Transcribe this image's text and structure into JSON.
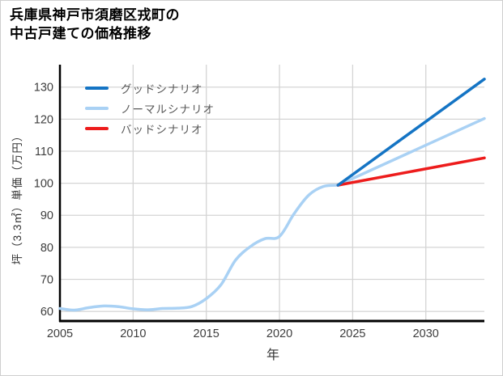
{
  "window": {
    "background": "#ffffff",
    "border_color": "#cfcfcf"
  },
  "header": {
    "title_line1": "兵庫県神戸市須磨区戎町の",
    "title_line2": "中古戸建ての価格推移"
  },
  "chart_data": {
    "type": "line",
    "title": "兵庫県神戸市須磨区戎町の中古戸建ての価格推移",
    "xlabel": "年",
    "ylabel": "坪（3.3㎡）単価（万円）",
    "x_ticks": [
      2005,
      2010,
      2015,
      2020,
      2025,
      2030
    ],
    "y_ticks": [
      60,
      70,
      80,
      90,
      100,
      110,
      120,
      130
    ],
    "xlim": [
      2005,
      2034
    ],
    "ylim": [
      57,
      137
    ],
    "grid": true,
    "legend_position": "top-left",
    "history": {
      "color": "#a9d1f4",
      "years": [
        2005,
        2006,
        2007,
        2008,
        2009,
        2010,
        2011,
        2012,
        2013,
        2014,
        2015,
        2016,
        2017,
        2018,
        2019,
        2020,
        2021,
        2022,
        2023,
        2024
      ],
      "values": [
        60.9,
        60.4,
        61.2,
        61.7,
        61.5,
        60.8,
        60.5,
        60.9,
        61.0,
        61.5,
        64.0,
        68.3,
        76.0,
        80.2,
        82.7,
        83.4,
        90.5,
        96.3,
        99.0,
        99.4
      ]
    },
    "scenarios": [
      {
        "label": "グッドシナリオ",
        "color": "#1474c4",
        "years": [
          2024,
          2034
        ],
        "values": [
          99.4,
          132.5
        ]
      },
      {
        "label": "ノーマルシナリオ",
        "color": "#a9d1f4",
        "years": [
          2024,
          2034
        ],
        "values": [
          99.4,
          120.2
        ]
      },
      {
        "label": "バッドシナリオ",
        "color": "#ed1c1c",
        "years": [
          2024,
          2034
        ],
        "values": [
          99.4,
          107.9
        ]
      }
    ],
    "colors": {
      "grid": "#d4d4d4",
      "axis": "#000000",
      "tick_label": "#3d3d3d",
      "legend_text": "#595959"
    }
  }
}
